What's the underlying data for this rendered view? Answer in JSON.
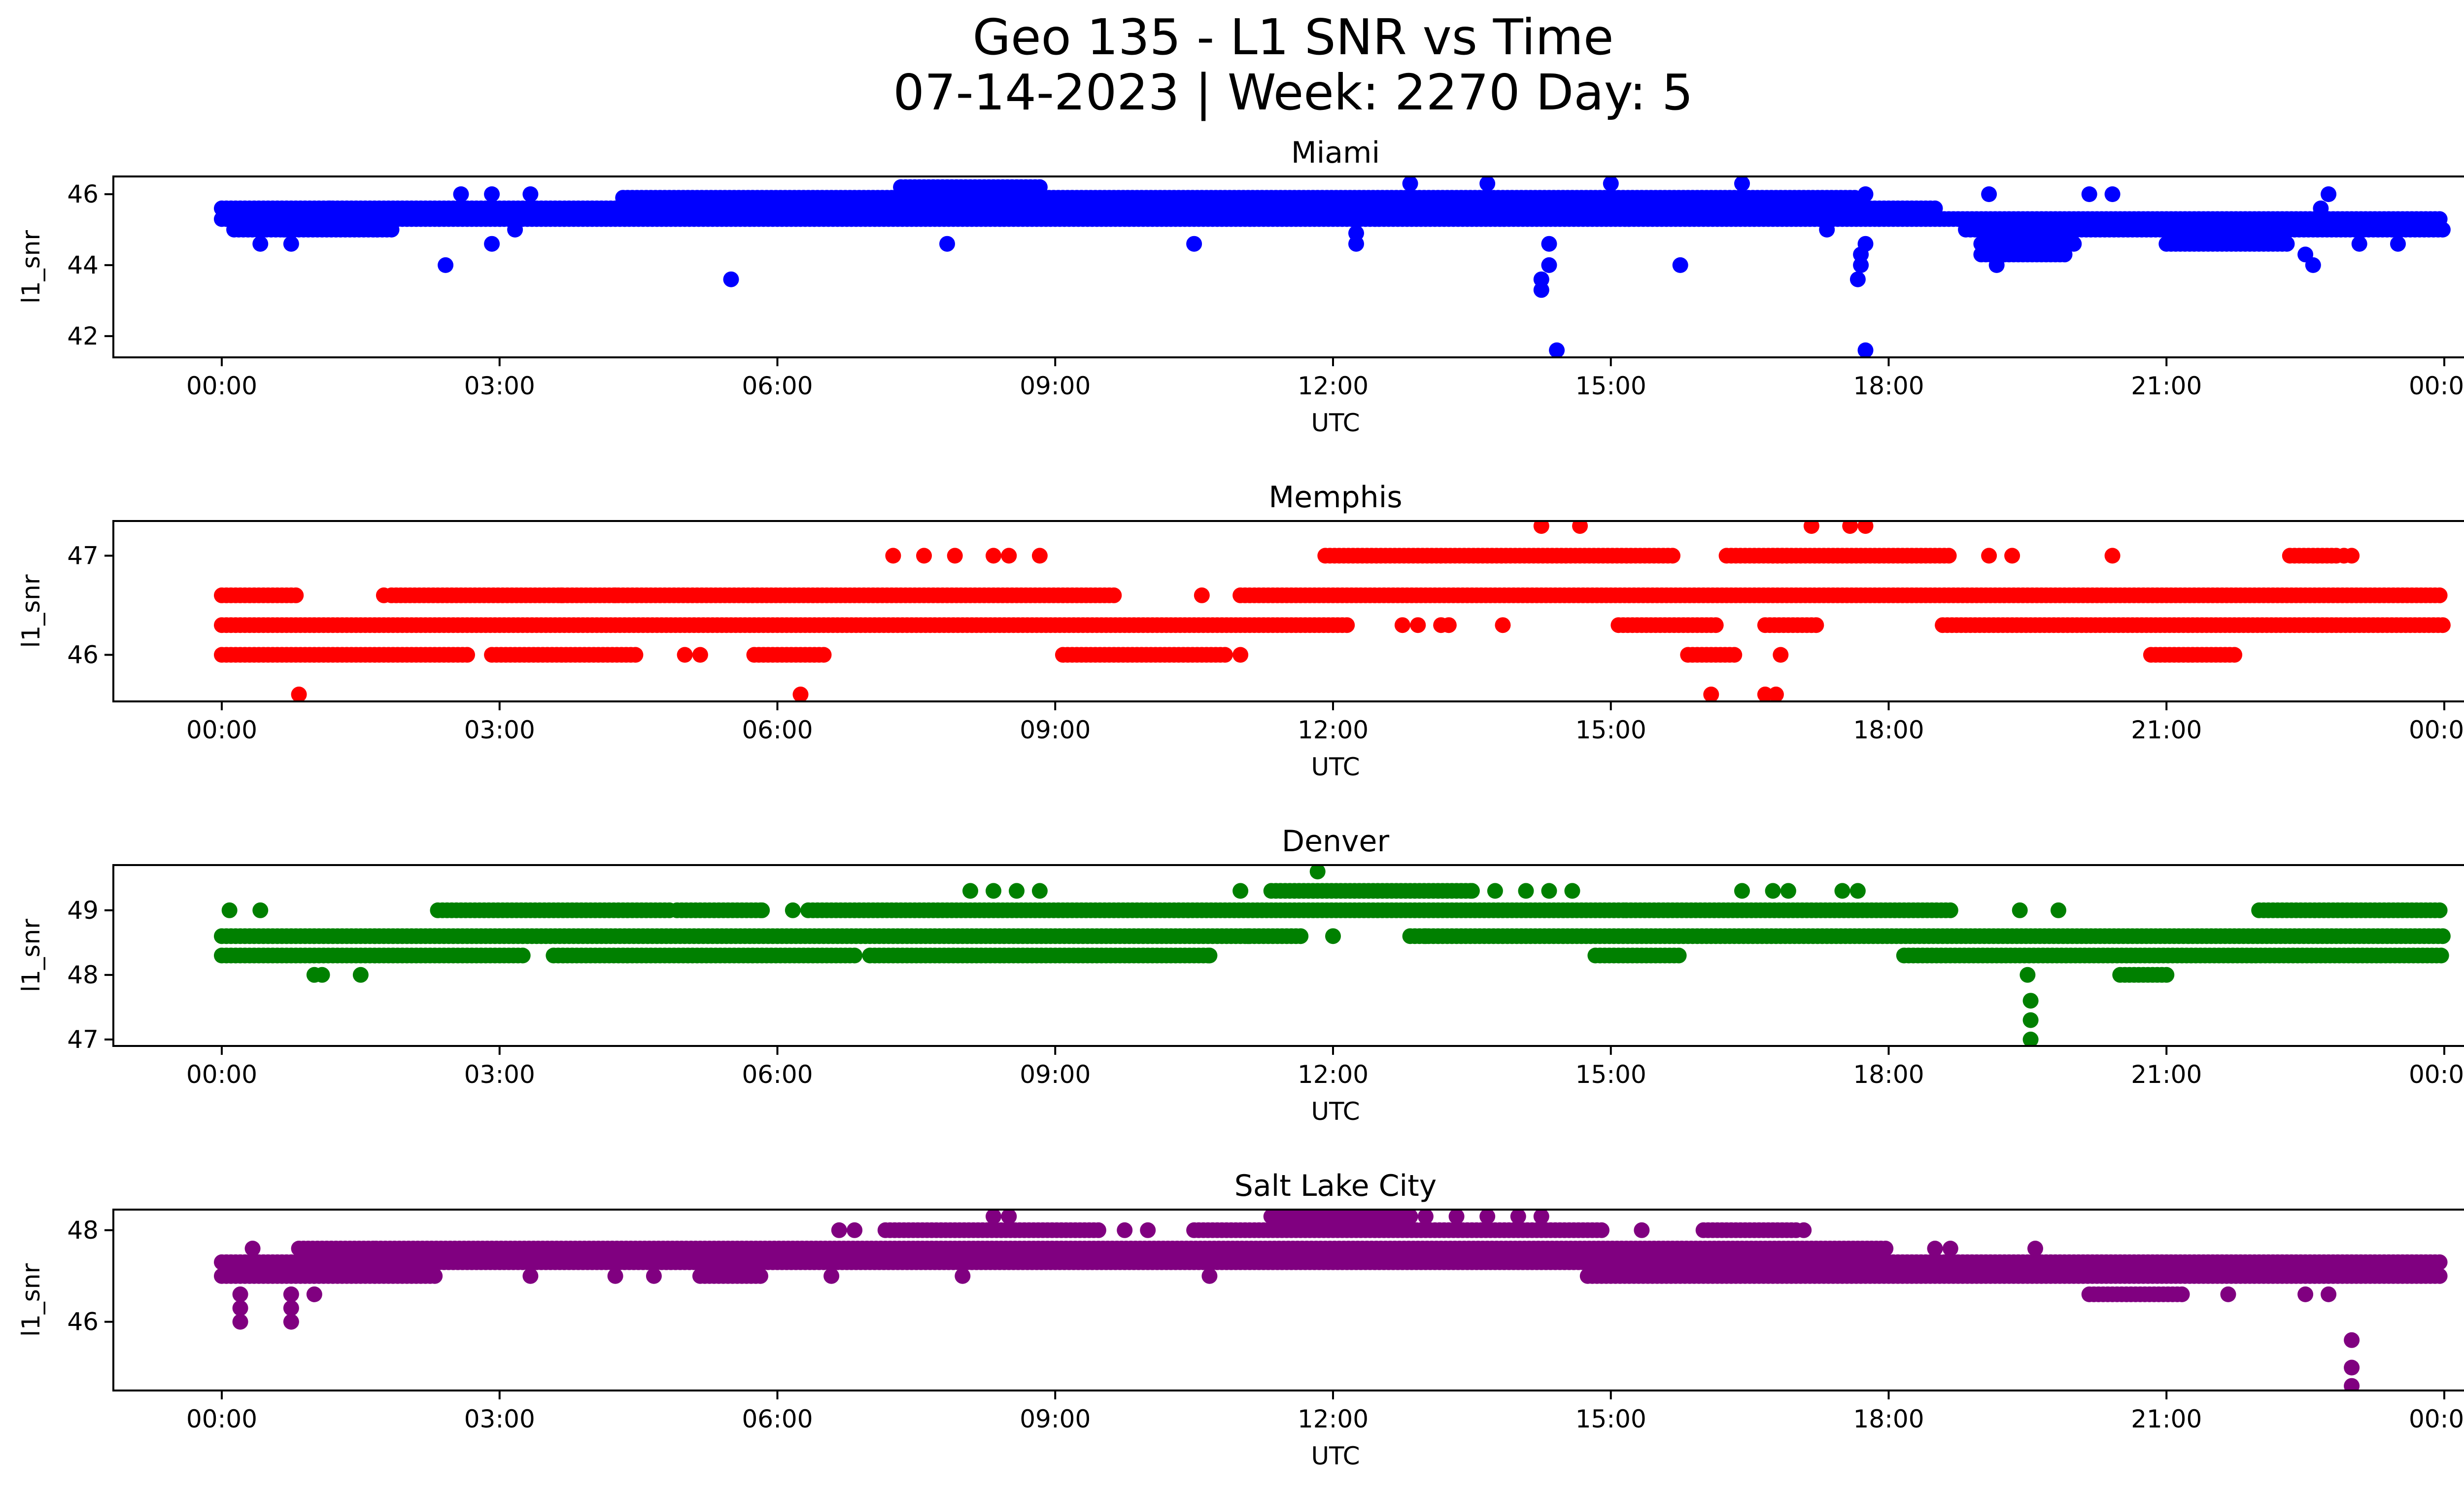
{
  "figure": {
    "title_line1": "Geo 135 - L1 SNR vs Time",
    "title_line2": "07-14-2023 | Week: 2270 Day: 5"
  },
  "chart_data": [
    {
      "type": "scatter",
      "title": "Miami",
      "xlabel": "UTC",
      "ylabel": "l1_snr",
      "color": "#0000ff",
      "xlim": [
        "00:00",
        "24:00"
      ],
      "ylim": [
        41.4,
        46.5
      ],
      "yticks": [
        42,
        44,
        46
      ],
      "xticks": [
        "00:00",
        "03:00",
        "06:00",
        "09:00",
        "12:00",
        "15:00",
        "18:00",
        "21:00",
        "00:00"
      ],
      "grid": false,
      "bands": [
        {
          "y": 45.3,
          "from": "00:00",
          "to": "23:59"
        },
        {
          "y": 45.6,
          "from": "00:00",
          "to": "18:30"
        },
        {
          "y": 45.9,
          "from": "04:20",
          "to": "17:40"
        },
        {
          "y": 45.0,
          "from": "00:08",
          "to": "01:50"
        },
        {
          "y": 45.0,
          "from": "18:50",
          "to": "23:59"
        },
        {
          "y": 44.6,
          "from": "19:00",
          "to": "20:00"
        },
        {
          "y": 44.3,
          "from": "19:00",
          "to": "19:55"
        },
        {
          "y": 46.2,
          "from": "07:20",
          "to": "08:50"
        },
        {
          "y": 44.6,
          "from": "21:00",
          "to": "22:20"
        }
      ],
      "points": [
        {
          "x": "02:25",
          "y": 44.0
        },
        {
          "x": "05:30",
          "y": 43.6
        },
        {
          "x": "07:50",
          "y": 44.6
        },
        {
          "x": "10:30",
          "y": 44.6
        },
        {
          "x": "12:15",
          "y": 44.6
        },
        {
          "x": "12:15",
          "y": 44.9
        },
        {
          "x": "14:15",
          "y": 43.3
        },
        {
          "x": "14:15",
          "y": 43.6
        },
        {
          "x": "14:20",
          "y": 44.0
        },
        {
          "x": "14:20",
          "y": 44.6
        },
        {
          "x": "14:25",
          "y": 41.6
        },
        {
          "x": "15:45",
          "y": 44.0
        },
        {
          "x": "17:20",
          "y": 45.0
        },
        {
          "x": "17:40",
          "y": 43.6
        },
        {
          "x": "17:42",
          "y": 44.0
        },
        {
          "x": "17:42",
          "y": 44.3
        },
        {
          "x": "17:45",
          "y": 44.6
        },
        {
          "x": "17:45",
          "y": 41.6
        },
        {
          "x": "02:35",
          "y": 46.0
        },
        {
          "x": "02:55",
          "y": 46.0
        },
        {
          "x": "03:20",
          "y": 46.0
        },
        {
          "x": "00:25",
          "y": 44.6
        },
        {
          "x": "00:45",
          "y": 44.6
        },
        {
          "x": "00:40",
          "y": 45.0
        },
        {
          "x": "02:55",
          "y": 44.6
        },
        {
          "x": "20:25",
          "y": 46.0
        },
        {
          "x": "22:30",
          "y": 44.3
        },
        {
          "x": "22:35",
          "y": 44.0
        },
        {
          "x": "22:45",
          "y": 46.0
        },
        {
          "x": "23:05",
          "y": 44.6
        },
        {
          "x": "23:30",
          "y": 44.6
        },
        {
          "x": "15:00",
          "y": 46.3
        },
        {
          "x": "16:25",
          "y": 46.3
        },
        {
          "x": "17:45",
          "y": 46.0
        },
        {
          "x": "20:10",
          "y": 46.0
        },
        {
          "x": "22:40",
          "y": 45.6
        },
        {
          "x": "01:10",
          "y": 45.6
        },
        {
          "x": "03:10",
          "y": 45.0
        },
        {
          "x": "13:40",
          "y": 46.3
        },
        {
          "x": "12:50",
          "y": 46.3
        },
        {
          "x": "19:10",
          "y": 44.0
        },
        {
          "x": "19:05",
          "y": 46.0
        }
      ]
    },
    {
      "type": "scatter",
      "title": "Memphis",
      "xlabel": "UTC",
      "ylabel": "l1_snr",
      "color": "#ff0000",
      "xlim": [
        "00:00",
        "24:00"
      ],
      "ylim": [
        45.53,
        47.35
      ],
      "yticks": [
        46,
        47
      ],
      "xticks": [
        "00:00",
        "03:00",
        "06:00",
        "09:00",
        "12:00",
        "15:00",
        "18:00",
        "21:00",
        "00:00"
      ],
      "grid": false,
      "bands": [
        {
          "y": 46.3,
          "from": "00:00",
          "to": "12:10"
        },
        {
          "y": 46.3,
          "from": "18:35",
          "to": "23:59"
        },
        {
          "y": 46.6,
          "from": "01:50",
          "to": "09:40"
        },
        {
          "y": 46.6,
          "from": "11:00",
          "to": "23:59"
        },
        {
          "y": 46.6,
          "from": "00:00",
          "to": "00:50"
        },
        {
          "y": 46.0,
          "from": "00:00",
          "to": "02:40"
        },
        {
          "y": 46.0,
          "from": "09:05",
          "to": "10:50"
        },
        {
          "y": 46.0,
          "from": "02:55",
          "to": "04:30"
        },
        {
          "y": 46.0,
          "from": "05:45",
          "to": "06:30"
        },
        {
          "y": 47.0,
          "from": "11:55",
          "to": "15:40"
        },
        {
          "y": 47.0,
          "from": "16:45",
          "to": "18:40"
        },
        {
          "y": 47.0,
          "from": "16:15",
          "to": "16:55"
        },
        {
          "y": 46.3,
          "from": "15:05",
          "to": "16:10"
        },
        {
          "y": 46.3,
          "from": "16:40",
          "to": "17:15"
        },
        {
          "y": 46.0,
          "from": "15:50",
          "to": "16:20"
        },
        {
          "y": 46.0,
          "from": "20:50",
          "to": "21:45"
        },
        {
          "y": 47.0,
          "from": "22:20",
          "to": "22:50"
        }
      ],
      "points": [
        {
          "x": "00:50",
          "y": 45.6
        },
        {
          "x": "06:15",
          "y": 45.6
        },
        {
          "x": "16:05",
          "y": 45.6
        },
        {
          "x": "16:40",
          "y": 45.6
        },
        {
          "x": "16:47",
          "y": 45.6
        },
        {
          "x": "14:15",
          "y": 47.3
        },
        {
          "x": "14:40",
          "y": 47.3
        },
        {
          "x": "17:10",
          "y": 47.3
        },
        {
          "x": "17:35",
          "y": 47.3
        },
        {
          "x": "17:45",
          "y": 47.3
        },
        {
          "x": "07:15",
          "y": 47.0
        },
        {
          "x": "07:35",
          "y": 47.0
        },
        {
          "x": "07:55",
          "y": 47.0
        },
        {
          "x": "08:20",
          "y": 47.0
        },
        {
          "x": "08:30",
          "y": 47.0
        },
        {
          "x": "08:50",
          "y": 47.0
        },
        {
          "x": "19:05",
          "y": 47.0
        },
        {
          "x": "19:20",
          "y": 47.0
        },
        {
          "x": "20:25",
          "y": 47.0
        },
        {
          "x": "23:00",
          "y": 47.0
        },
        {
          "x": "22:55",
          "y": 47.0
        },
        {
          "x": "05:10",
          "y": 46.0
        },
        {
          "x": "05:00",
          "y": 46.0
        },
        {
          "x": "11:00",
          "y": 46.0
        },
        {
          "x": "12:45",
          "y": 46.3
        },
        {
          "x": "12:55",
          "y": 46.3
        },
        {
          "x": "13:10",
          "y": 46.3
        },
        {
          "x": "13:15",
          "y": 46.3
        },
        {
          "x": "13:50",
          "y": 46.3
        },
        {
          "x": "01:45",
          "y": 46.6
        },
        {
          "x": "03:40",
          "y": 46.6
        },
        {
          "x": "04:15",
          "y": 46.6
        },
        {
          "x": "10:35",
          "y": 46.6
        },
        {
          "x": "16:50",
          "y": 46.0
        }
      ]
    },
    {
      "type": "scatter",
      "title": "Denver",
      "xlabel": "UTC",
      "ylabel": "l1_snr",
      "color": "#008000",
      "xlim": [
        "00:00",
        "24:00"
      ],
      "ylim": [
        46.9,
        49.7
      ],
      "yticks": [
        47,
        48,
        49
      ],
      "xticks": [
        "00:00",
        "03:00",
        "06:00",
        "09:00",
        "12:00",
        "15:00",
        "18:00",
        "21:00",
        "00:00"
      ],
      "grid": false,
      "bands": [
        {
          "y": 48.6,
          "from": "00:00",
          "to": "11:40"
        },
        {
          "y": 48.6,
          "from": "12:50",
          "to": "23:59"
        },
        {
          "y": 48.3,
          "from": "00:00",
          "to": "03:15"
        },
        {
          "y": 48.3,
          "from": "03:35",
          "to": "06:50"
        },
        {
          "y": 48.3,
          "from": "07:00",
          "to": "10:40"
        },
        {
          "y": 48.3,
          "from": "18:10",
          "to": "23:59"
        },
        {
          "y": 48.3,
          "from": "14:50",
          "to": "15:45"
        },
        {
          "y": 49.0,
          "from": "06:20",
          "to": "15:10"
        },
        {
          "y": 49.0,
          "from": "15:10",
          "to": "18:40"
        },
        {
          "y": 49.0,
          "from": "02:20",
          "to": "04:50"
        },
        {
          "y": 49.0,
          "from": "04:55",
          "to": "05:50"
        },
        {
          "y": 49.3,
          "from": "11:20",
          "to": "13:30"
        },
        {
          "y": 49.0,
          "from": "22:00",
          "to": "23:59"
        },
        {
          "y": 48.0,
          "from": "20:30",
          "to": "21:00"
        }
      ],
      "points": [
        {
          "x": "00:05",
          "y": 49.0
        },
        {
          "x": "00:25",
          "y": 49.0
        },
        {
          "x": "01:00",
          "y": 48.0
        },
        {
          "x": "01:05",
          "y": 48.0
        },
        {
          "x": "01:30",
          "y": 48.0
        },
        {
          "x": "11:50",
          "y": 49.6
        },
        {
          "x": "12:00",
          "y": 48.6
        },
        {
          "x": "19:30",
          "y": 48.0
        },
        {
          "x": "19:32",
          "y": 47.6
        },
        {
          "x": "19:32",
          "y": 47.3
        },
        {
          "x": "19:32",
          "y": 47.0
        },
        {
          "x": "19:25",
          "y": 49.0
        },
        {
          "x": "19:50",
          "y": 49.0
        },
        {
          "x": "08:05",
          "y": 49.3
        },
        {
          "x": "08:20",
          "y": 49.3
        },
        {
          "x": "08:35",
          "y": 49.3
        },
        {
          "x": "08:50",
          "y": 49.3
        },
        {
          "x": "13:30",
          "y": 49.3
        },
        {
          "x": "13:45",
          "y": 49.3
        },
        {
          "x": "14:05",
          "y": 49.3
        },
        {
          "x": "14:20",
          "y": 49.3
        },
        {
          "x": "14:35",
          "y": 49.3
        },
        {
          "x": "16:25",
          "y": 49.3
        },
        {
          "x": "16:45",
          "y": 49.3
        },
        {
          "x": "16:55",
          "y": 49.3
        },
        {
          "x": "17:30",
          "y": 49.3
        },
        {
          "x": "17:40",
          "y": 49.3
        },
        {
          "x": "11:00",
          "y": 49.3
        },
        {
          "x": "10:40",
          "y": 48.3
        },
        {
          "x": "11:05",
          "y": 48.6
        },
        {
          "x": "13:00",
          "y": 48.6
        },
        {
          "x": "05:50",
          "y": 49.0
        },
        {
          "x": "06:10",
          "y": 49.0
        }
      ]
    },
    {
      "type": "scatter",
      "title": "Salt Lake City",
      "xlabel": "UTC",
      "ylabel": "l1_snr",
      "color": "#800080",
      "xlim": [
        "00:00",
        "24:00"
      ],
      "ylim": [
        44.5,
        48.45
      ],
      "yticks": [
        46,
        48
      ],
      "xticks": [
        "00:00",
        "03:00",
        "06:00",
        "09:00",
        "12:00",
        "15:00",
        "18:00",
        "21:00",
        "00:00"
      ],
      "grid": false,
      "bands": [
        {
          "y": 47.3,
          "from": "00:00",
          "to": "23:59"
        },
        {
          "y": 47.0,
          "from": "00:00",
          "to": "02:20"
        },
        {
          "y": 47.0,
          "from": "14:45",
          "to": "23:59"
        },
        {
          "y": 47.6,
          "from": "01:40",
          "to": "18:00"
        },
        {
          "y": 47.6,
          "from": "00:50",
          "to": "01:40"
        },
        {
          "y": 48.0,
          "from": "07:10",
          "to": "09:30"
        },
        {
          "y": 48.0,
          "from": "10:30",
          "to": "14:55"
        },
        {
          "y": 48.3,
          "from": "11:20",
          "to": "12:50"
        },
        {
          "y": 48.0,
          "from": "16:00",
          "to": "17:00"
        },
        {
          "y": 46.6,
          "from": "20:10",
          "to": "21:10"
        },
        {
          "y": 47.0,
          "from": "05:10",
          "to": "05:50"
        }
      ],
      "points": [
        {
          "x": "00:12",
          "y": 46.6
        },
        {
          "x": "00:12",
          "y": 46.3
        },
        {
          "x": "00:12",
          "y": 46.0
        },
        {
          "x": "00:45",
          "y": 46.6
        },
        {
          "x": "00:45",
          "y": 46.3
        },
        {
          "x": "00:45",
          "y": 46.0
        },
        {
          "x": "01:00",
          "y": 46.6
        },
        {
          "x": "00:20",
          "y": 47.6
        },
        {
          "x": "23:00",
          "y": 45.6
        },
        {
          "x": "23:00",
          "y": 45.0
        },
        {
          "x": "23:00",
          "y": 44.6
        },
        {
          "x": "08:20",
          "y": 48.3
        },
        {
          "x": "08:30",
          "y": 48.3
        },
        {
          "x": "13:00",
          "y": 48.3
        },
        {
          "x": "13:20",
          "y": 48.3
        },
        {
          "x": "13:40",
          "y": 48.3
        },
        {
          "x": "14:00",
          "y": 48.3
        },
        {
          "x": "14:15",
          "y": 48.3
        },
        {
          "x": "06:40",
          "y": 48.0
        },
        {
          "x": "06:50",
          "y": 48.0
        },
        {
          "x": "09:45",
          "y": 48.0
        },
        {
          "x": "10:00",
          "y": 48.0
        },
        {
          "x": "15:20",
          "y": 48.0
        },
        {
          "x": "17:05",
          "y": 48.0
        },
        {
          "x": "19:35",
          "y": 47.6
        },
        {
          "x": "18:30",
          "y": 47.6
        },
        {
          "x": "18:40",
          "y": 47.6
        },
        {
          "x": "21:40",
          "y": 46.6
        },
        {
          "x": "22:30",
          "y": 46.6
        },
        {
          "x": "22:45",
          "y": 46.6
        },
        {
          "x": "06:35",
          "y": 47.0
        },
        {
          "x": "08:00",
          "y": 47.0
        },
        {
          "x": "10:40",
          "y": 47.0
        },
        {
          "x": "03:20",
          "y": 47.0
        },
        {
          "x": "04:15",
          "y": 47.0
        },
        {
          "x": "04:40",
          "y": 47.0
        },
        {
          "x": "12:00",
          "y": 48.3
        }
      ]
    }
  ]
}
